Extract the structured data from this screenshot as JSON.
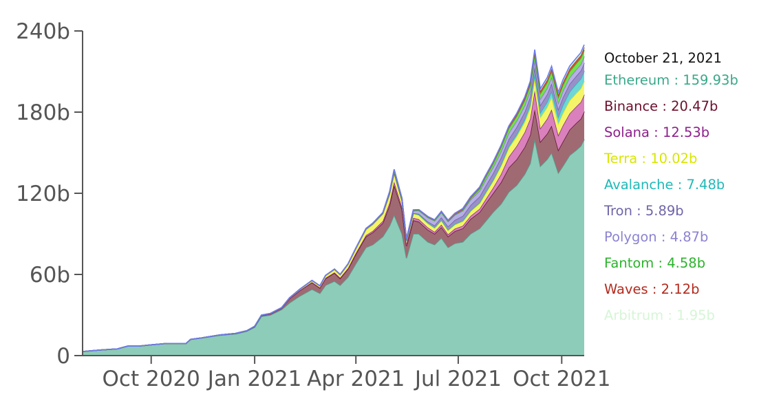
{
  "chart_data": {
    "type": "area",
    "stacked": true,
    "x_start": "2020-08-01",
    "x_end": "2021-10-21",
    "x_ticks": [
      {
        "date": "2020-10-01",
        "label": "Oct 2020"
      },
      {
        "date": "2021-01-01",
        "label": "Jan 2021"
      },
      {
        "date": "2021-04-01",
        "label": "Apr 2021"
      },
      {
        "date": "2021-07-01",
        "label": "Jul 2021"
      },
      {
        "date": "2021-10-01",
        "label": "Oct 2021"
      }
    ],
    "y_ticks": [
      {
        "value": 0,
        "label": "0"
      },
      {
        "value": 60,
        "label": "60b"
      },
      {
        "value": 120,
        "label": "120b"
      },
      {
        "value": 180,
        "label": "180b"
      },
      {
        "value": 240,
        "label": "240b"
      }
    ],
    "ylim": [
      0,
      240
    ],
    "y_unit": "b",
    "x": [
      "2020-08-01",
      "2020-08-15",
      "2020-09-01",
      "2020-09-10",
      "2020-09-20",
      "2020-10-01",
      "2020-10-15",
      "2020-11-01",
      "2020-11-05",
      "2020-11-15",
      "2020-12-01",
      "2020-12-15",
      "2020-12-25",
      "2021-01-01",
      "2021-01-07",
      "2021-01-15",
      "2021-01-25",
      "2021-02-01",
      "2021-02-10",
      "2021-02-21",
      "2021-02-28",
      "2021-03-05",
      "2021-03-13",
      "2021-03-18",
      "2021-03-25",
      "2021-04-01",
      "2021-04-10",
      "2021-04-16",
      "2021-04-25",
      "2021-05-01",
      "2021-05-05",
      "2021-05-12",
      "2021-05-16",
      "2021-05-22",
      "2021-05-27",
      "2021-06-04",
      "2021-06-10",
      "2021-06-16",
      "2021-06-22",
      "2021-06-28",
      "2021-07-05",
      "2021-07-12",
      "2021-07-20",
      "2021-07-25",
      "2021-08-01",
      "2021-08-08",
      "2021-08-15",
      "2021-08-22",
      "2021-08-29",
      "2021-09-03",
      "2021-09-07",
      "2021-09-12",
      "2021-09-18",
      "2021-09-22",
      "2021-09-28",
      "2021-10-02",
      "2021-10-08",
      "2021-10-14",
      "2021-10-18",
      "2021-10-21"
    ],
    "series": [
      {
        "name": "Ethereum",
        "color": "#8dccb8",
        "values": [
          3,
          4,
          5,
          7,
          7,
          8,
          9,
          9,
          12,
          13,
          15,
          16,
          18,
          21,
          29,
          30,
          34,
          39,
          44,
          49,
          46,
          52,
          55,
          52,
          58,
          68,
          80,
          82,
          88,
          96,
          104,
          90,
          72,
          90,
          90,
          84,
          82,
          87,
          80,
          83,
          84,
          90,
          94,
          99,
          106,
          112,
          121,
          126,
          134,
          142,
          160,
          140,
          145,
          150,
          135,
          140,
          148,
          152,
          155,
          159.93
        ]
      },
      {
        "name": "Binance",
        "color": "#a06a72",
        "values": [
          0,
          0,
          0,
          0,
          0,
          0,
          0,
          0,
          0,
          0.1,
          0.2,
          0.3,
          0.3,
          0.4,
          0.6,
          0.8,
          1.1,
          3,
          4,
          5,
          4,
          5,
          6,
          5,
          6,
          7,
          8,
          9,
          10,
          15,
          22,
          18,
          9,
          10,
          9,
          9,
          8,
          8,
          8,
          9,
          10,
          11,
          12,
          13,
          14,
          16,
          18,
          19,
          20,
          21,
          22,
          18,
          19,
          20,
          17,
          18,
          19,
          20,
          20,
          20.47
        ]
      },
      {
        "name": "Solana",
        "color": "#d980bd",
        "values": [
          0,
          0,
          0,
          0,
          0,
          0,
          0,
          0,
          0,
          0,
          0,
          0,
          0,
          0.1,
          0.1,
          0.1,
          0.1,
          0.2,
          0.2,
          0.3,
          0.3,
          0.4,
          0.5,
          0.5,
          0.6,
          0.8,
          1,
          1.2,
          1.5,
          2,
          2.5,
          2,
          1.5,
          1.8,
          1.8,
          1.7,
          1.5,
          1.8,
          1.6,
          1.8,
          2,
          2.2,
          2.5,
          3,
          4,
          6,
          8,
          10,
          11,
          12,
          14,
          10,
          11,
          12,
          11,
          12,
          12,
          12.2,
          12.4,
          12.53
        ]
      },
      {
        "name": "Terra",
        "color": "#f5f56a",
        "values": [
          0,
          0,
          0,
          0,
          0,
          0,
          0,
          0,
          0,
          0,
          0.1,
          0.1,
          0.1,
          0.2,
          0.2,
          0.3,
          0.3,
          0.4,
          0.6,
          1,
          1,
          1.5,
          2,
          2,
          2.5,
          3,
          4,
          4.5,
          5,
          6,
          6,
          4,
          2,
          3,
          3,
          3,
          2.8,
          3,
          3,
          3,
          3.2,
          3.5,
          4,
          4.5,
          5,
          6,
          6.5,
          7,
          7.5,
          8,
          9,
          8,
          8.5,
          9,
          8.5,
          9,
          9.5,
          9.8,
          10,
          10.02
        ]
      },
      {
        "name": "Avalanche",
        "color": "#6ed6d6",
        "values": [
          0,
          0,
          0,
          0,
          0,
          0,
          0,
          0,
          0,
          0,
          0,
          0,
          0,
          0,
          0,
          0,
          0,
          0.1,
          0.2,
          0.3,
          0.3,
          0.4,
          0.4,
          0.4,
          0.5,
          0.5,
          0.6,
          0.7,
          0.7,
          0.8,
          0.9,
          0.6,
          0.4,
          0.5,
          0.5,
          0.4,
          0.4,
          0.4,
          0.4,
          0.4,
          0.5,
          0.5,
          0.6,
          0.7,
          0.8,
          1,
          1.3,
          1.5,
          2,
          2.5,
          3,
          3.5,
          4,
          4.5,
          5,
          6,
          6.5,
          7,
          7.3,
          7.48
        ]
      },
      {
        "name": "Tron",
        "color": "#9a90c8",
        "values": [
          0,
          0,
          0,
          0,
          0,
          0,
          0,
          0,
          0,
          0,
          0,
          0,
          0,
          0,
          0,
          0,
          0,
          0,
          0,
          0,
          0,
          0,
          0,
          0,
          0,
          0,
          0,
          0,
          0,
          0,
          0,
          0,
          0,
          0,
          0.5,
          1,
          1.5,
          2,
          2.5,
          3,
          3.5,
          4,
          4.5,
          4.8,
          5,
          5.2,
          5.3,
          5.4,
          5.5,
          5.6,
          5.7,
          5.6,
          5.6,
          5.7,
          5.6,
          5.7,
          5.8,
          5.8,
          5.85,
          5.89
        ]
      },
      {
        "name": "Polygon",
        "color": "#b8aee6",
        "values": [
          0,
          0,
          0,
          0,
          0,
          0,
          0,
          0,
          0,
          0,
          0,
          0,
          0,
          0,
          0,
          0,
          0,
          0,
          0,
          0,
          0,
          0,
          0,
          0.1,
          0.2,
          0.3,
          0.4,
          0.5,
          0.6,
          1,
          1.5,
          1.2,
          1,
          1.8,
          2.5,
          3,
          3.5,
          3.7,
          3.7,
          3.8,
          3.9,
          4,
          4.2,
          4.3,
          4.4,
          4.5,
          4.6,
          4.6,
          4.7,
          4.7,
          4.8,
          4.6,
          4.6,
          4.7,
          4.6,
          4.7,
          4.8,
          4.8,
          4.85,
          4.87
        ]
      },
      {
        "name": "Fantom",
        "color": "#76e24a",
        "values": [
          0,
          0,
          0,
          0,
          0,
          0,
          0,
          0,
          0,
          0,
          0,
          0,
          0,
          0,
          0,
          0,
          0,
          0,
          0,
          0,
          0,
          0,
          0,
          0,
          0,
          0,
          0,
          0,
          0,
          0,
          0,
          0,
          0,
          0,
          0,
          0,
          0,
          0,
          0,
          0.2,
          0.5,
          1,
          1.5,
          2,
          2.5,
          3,
          3.3,
          3.5,
          3.8,
          4,
          4.2,
          4,
          4.1,
          4.2,
          4.2,
          4.3,
          4.4,
          4.5,
          4.55,
          4.58
        ]
      },
      {
        "name": "Waves",
        "color": "#d94a3a",
        "values": [
          0,
          0,
          0,
          0,
          0,
          0,
          0,
          0,
          0,
          0,
          0,
          0,
          0,
          0,
          0,
          0,
          0,
          0,
          0,
          0,
          0,
          0,
          0,
          0,
          0,
          0,
          0,
          0,
          0,
          0.5,
          0.8,
          0.6,
          0.5,
          0.6,
          0.6,
          0.7,
          0.7,
          0.8,
          0.9,
          1,
          1.1,
          1.2,
          1.3,
          1.4,
          1.5,
          1.6,
          1.7,
          1.8,
          1.9,
          2,
          2,
          2,
          2,
          2.05,
          2.05,
          2.08,
          2.1,
          2.1,
          2.11,
          2.12
        ]
      },
      {
        "name": "Arbitrum",
        "color": "#c8f5c8",
        "values": [
          0,
          0,
          0,
          0,
          0,
          0,
          0,
          0,
          0,
          0,
          0,
          0,
          0,
          0,
          0,
          0,
          0,
          0,
          0,
          0,
          0,
          0,
          0,
          0,
          0,
          0,
          0,
          0,
          0,
          0,
          0,
          0,
          0,
          0,
          0,
          0,
          0,
          0,
          0,
          0,
          0,
          0,
          0,
          0,
          0,
          0,
          0.1,
          0.3,
          0.6,
          1,
          1.5,
          1.6,
          1.7,
          1.8,
          1.8,
          1.85,
          1.9,
          1.92,
          1.94,
          1.95
        ]
      }
    ],
    "border_colors": [
      "#4aa393",
      "#5c1a2a",
      "#8b2c86",
      "#e6e600",
      "#22b7b7",
      "#6b62a6",
      "#7f7fc9",
      "#2ebc2e",
      "#b53a2a",
      "#6a7cf0"
    ]
  },
  "tooltip": {
    "date": "October 21, 2021",
    "date_color": "#111111",
    "entries": [
      {
        "label": "Ethereum : 159.93b",
        "color": "#3aa88a"
      },
      {
        "label": "Binance : 20.47b",
        "color": "#6b0f2b"
      },
      {
        "label": "Solana : 12.53b",
        "color": "#8e1f8c"
      },
      {
        "label": "Terra : 10.02b",
        "color": "#d8e600"
      },
      {
        "label": "Avalanche : 7.48b",
        "color": "#1fb9b9"
      },
      {
        "label": "Tron : 5.89b",
        "color": "#6f66a8"
      },
      {
        "label": "Polygon : 4.87b",
        "color": "#8b83d1"
      },
      {
        "label": "Fantom : 4.58b",
        "color": "#2bb32b"
      },
      {
        "label": "Waves : 2.12b",
        "color": "#b32a1d"
      },
      {
        "label": "Arbitrum : 1.95b",
        "color": "#d6f5d6"
      }
    ]
  }
}
